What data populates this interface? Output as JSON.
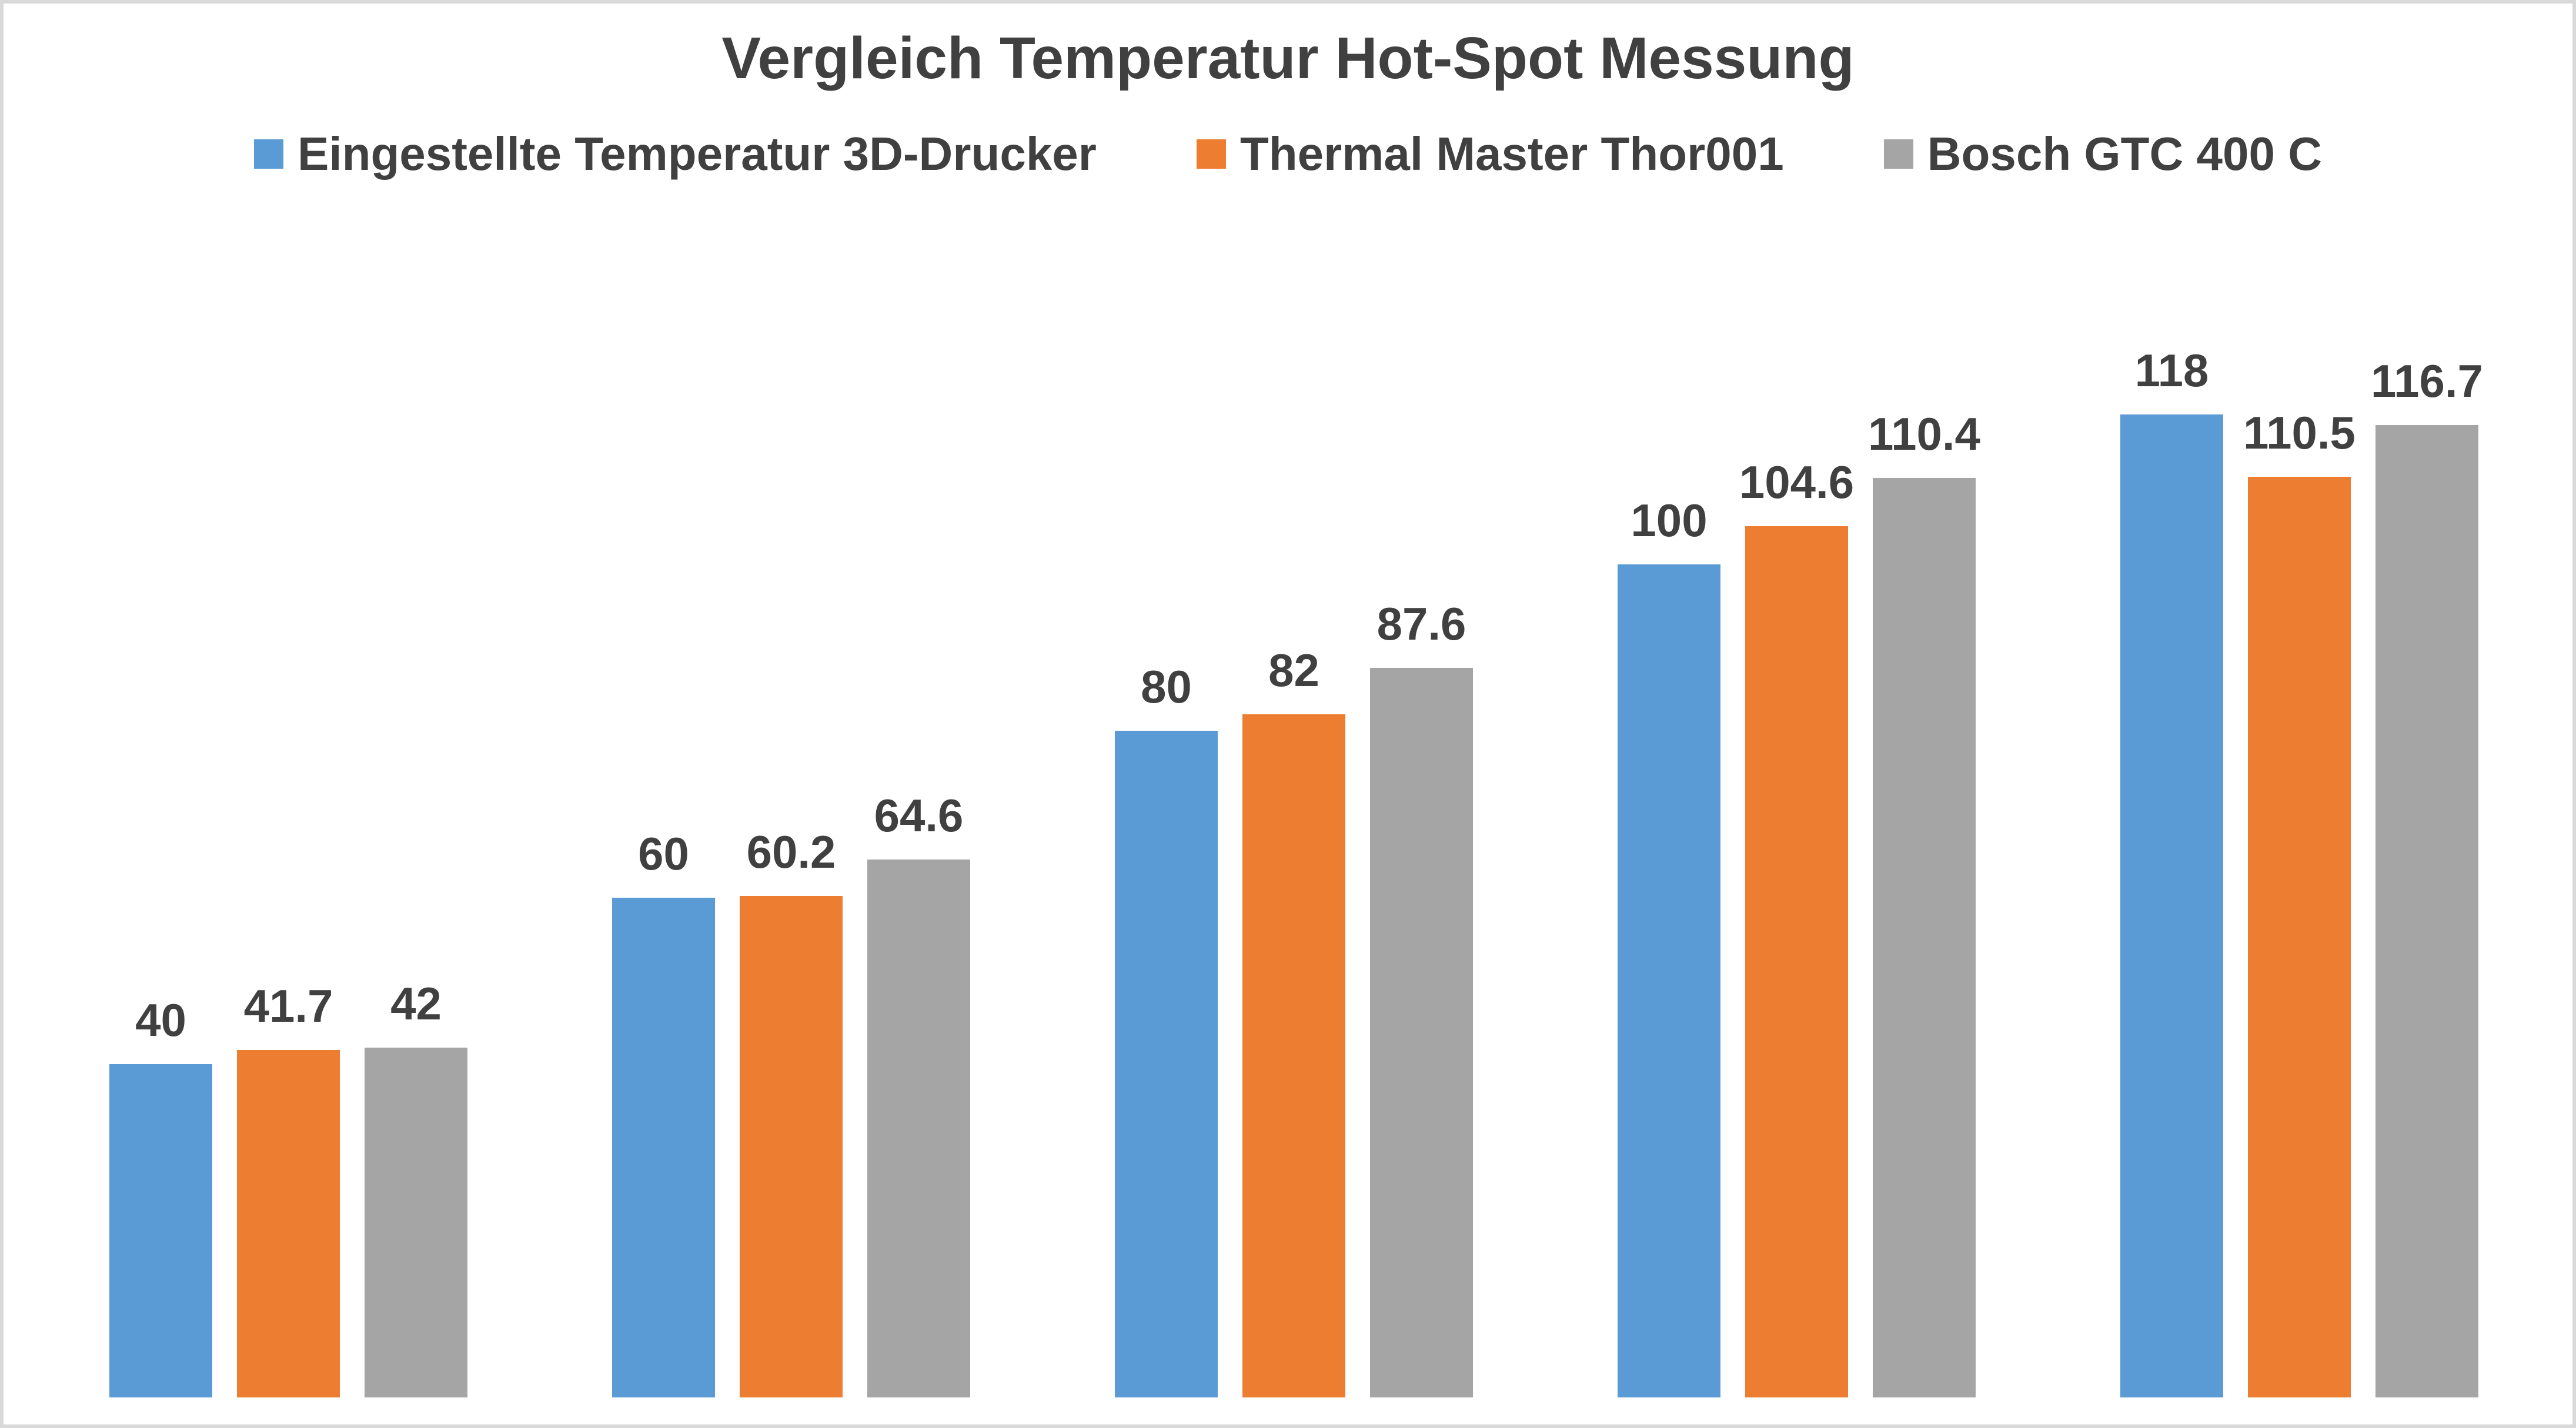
{
  "page": {
    "background": "#FFFFFF",
    "border_color": "#D9D9D9",
    "text_color": "#404040"
  },
  "chart_data": {
    "type": "bar",
    "title": "Vergleich Temperatur Hot-Spot Messung",
    "legend_position": "top",
    "axes_visible": false,
    "gridlines": false,
    "data_labels": "above-bars",
    "group_count": 5,
    "series": [
      {
        "name": "Eingestellte Temperatur 3D-Drucker",
        "color": "#5B9BD5",
        "values": [
          40,
          60,
          80,
          100,
          118
        ]
      },
      {
        "name": "Thermal Master Thor001",
        "color": "#ED7D31",
        "values": [
          41.7,
          60.2,
          82,
          104.6,
          110.5
        ]
      },
      {
        "name": "Bosch GTC 400 C",
        "color": "#A5A5A5",
        "values": [
          42,
          64.6,
          87.6,
          110.4,
          116.7
        ]
      }
    ]
  }
}
